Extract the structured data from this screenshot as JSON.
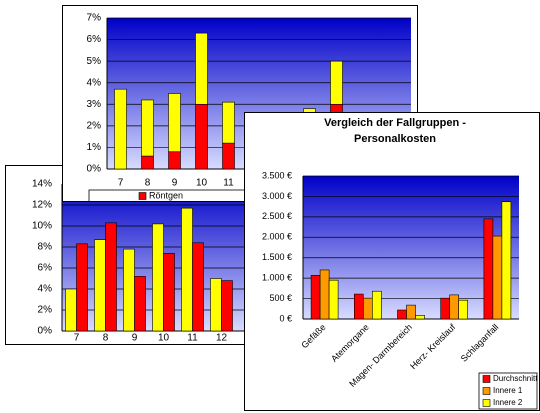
{
  "chart_data": [
    {
      "type": "bar",
      "stacked": true,
      "grid": true,
      "legend": "bottom",
      "categories": [
        "7",
        "8",
        "9",
        "10",
        "11",
        null,
        null,
        null,
        null
      ],
      "series": [
        {
          "name": "Röntgen",
          "color": "#ff0000",
          "values": [
            0,
            0.6,
            0.8,
            3.0,
            1.2,
            null,
            null,
            null,
            3.0
          ]
        },
        {
          "color": "#ffff00",
          "values": [
            3.7,
            2.6,
            2.7,
            3.3,
            1.9,
            null,
            null,
            2.8,
            2.0
          ]
        }
      ],
      "ylim": [
        0,
        7
      ],
      "yticks": [
        {
          "value": 0,
          "label": "0%"
        },
        {
          "value": 1,
          "label": "1%"
        },
        {
          "value": 2,
          "label": "2%"
        },
        {
          "value": 3,
          "label": "3%"
        },
        {
          "value": 4,
          "label": "4%"
        },
        {
          "value": 5,
          "label": "5%"
        },
        {
          "value": 6,
          "label": "6%"
        },
        {
          "value": 7,
          "label": "7%"
        }
      ]
    },
    {
      "type": "bar",
      "stacked": false,
      "grid": true,
      "categories": [
        "7",
        "8",
        "9",
        "10",
        "11",
        "12"
      ],
      "series": [
        {
          "color": "#ffff00",
          "values": [
            4.0,
            8.7,
            7.8,
            10.2,
            11.7,
            5.0
          ]
        },
        {
          "color": "#ff0000",
          "values": [
            8.3,
            10.3,
            5.2,
            7.4,
            8.4,
            4.8
          ]
        }
      ],
      "ylim": [
        0,
        14
      ],
      "yticks": [
        {
          "value": 0,
          "label": "0%"
        },
        {
          "value": 2,
          "label": "2%"
        },
        {
          "value": 4,
          "label": "4%"
        },
        {
          "value": 6,
          "label": "6%"
        },
        {
          "value": 8,
          "label": "8%"
        },
        {
          "value": 10,
          "label": "10%"
        },
        {
          "value": 12,
          "label": "12%"
        },
        {
          "value": 14,
          "label": "14%"
        }
      ]
    },
    {
      "type": "bar",
      "stacked": false,
      "grid": true,
      "legend": "right",
      "title": "Vergleich der Fallgruppen - Personalkosten",
      "categories": [
        "Gefäße",
        "Atemorgane",
        "Magen- Darmbereich",
        "Herz- Kreislauf",
        "Schlaganfall"
      ],
      "series": [
        {
          "name": "Durchschnitt",
          "color": "#ff0000",
          "values": [
            1070,
            610,
            220,
            510,
            2450
          ]
        },
        {
          "name": "Innere 1",
          "color": "#ff9900",
          "values": [
            1200,
            510,
            340,
            590,
            2030
          ]
        },
        {
          "name": "Innere 2",
          "color": "#ffff00",
          "values": [
            950,
            680,
            90,
            460,
            2870
          ]
        }
      ],
      "ylim": [
        0,
        3500
      ],
      "yticks": [
        {
          "value": 0,
          "label": "0 €"
        },
        {
          "value": 500,
          "label": "500 €"
        },
        {
          "value": 1000,
          "label": "1.000 €"
        },
        {
          "value": 1500,
          "label": "1.500 €"
        },
        {
          "value": 2000,
          "label": "2.000 €"
        },
        {
          "value": 2500,
          "label": "2.500 €"
        },
        {
          "value": 3000,
          "label": "3.000 €"
        },
        {
          "value": 3500,
          "label": "3.500 €"
        }
      ]
    }
  ]
}
